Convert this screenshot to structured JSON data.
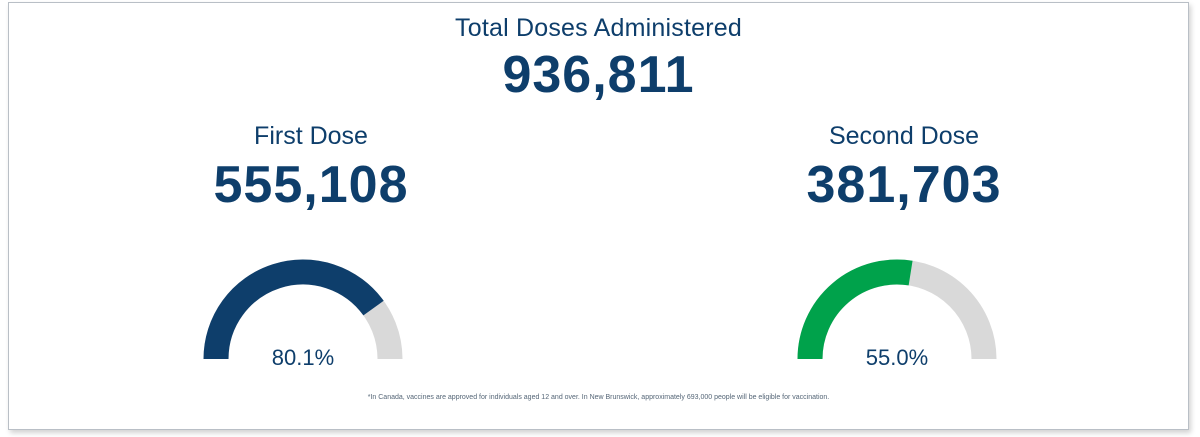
{
  "total": {
    "title": "Total Doses Administered",
    "value": "936,811"
  },
  "first_dose": {
    "title": "First Dose",
    "value": "555,108",
    "percent_label": "80.1%",
    "percent": 80.1,
    "color": "#0e3e6b"
  },
  "second_dose": {
    "title": "Second Dose",
    "value": "381,703",
    "percent_label": "55.0%",
    "percent": 55.0,
    "color": "#00a24b"
  },
  "gauge_track_color": "#d9d9d9",
  "footnote": "*In Canada, vaccines are approved for individuals aged 12 and over.  In New Brunswick, approximately 693,000 people will be eligible for vaccination."
}
